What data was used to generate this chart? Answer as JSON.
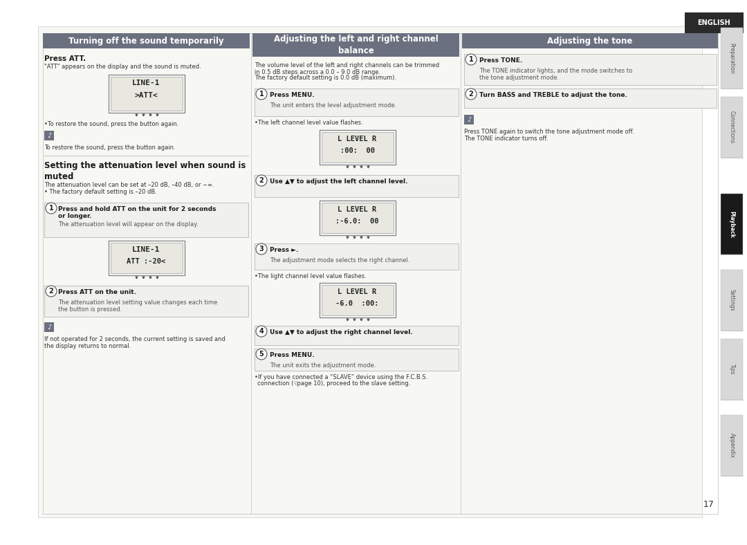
{
  "bg_color": "#f5f5f0",
  "page_bg": "#ffffff",
  "header_color": "#6b7080",
  "header_text_color": "#ffffff",
  "english_bg": "#2a2a2a",
  "english_text": "ENGLISH",
  "col1_header": "Turning off the sound temporarily",
  "col2_header": "Adjusting the left and right channel balance",
  "col3_header": "Adjusting the tone",
  "side_tab_labels": [
    "Preparation",
    "Connections",
    "Playback",
    "Settings",
    "Tips",
    "Appendix"
  ],
  "page_number": "17"
}
